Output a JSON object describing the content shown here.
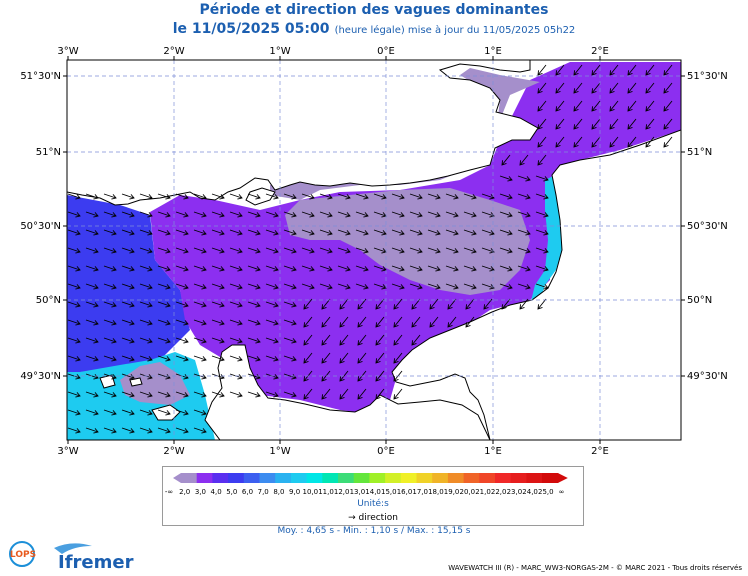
{
  "title": {
    "line1": "Période et direction des vagues dominantes",
    "date": "le 11/05/2025 05:00",
    "note": "(heure légale) mise à jour du 11/05/2025 05h22"
  },
  "axes": {
    "top_ticks": [
      "3°W",
      "2°W",
      "1°W",
      "0°E",
      "1°E",
      "2°E"
    ],
    "bottom_ticks": [
      "3°W",
      "2°W",
      "1°W",
      "0°E",
      "1°E",
      "2°E"
    ],
    "left_ticks": [
      "51°30'N",
      "51°N",
      "50°30'N",
      "50°N",
      "49°30'N"
    ],
    "right_ticks": [
      "51°30'N",
      "51°N",
      "50°30'N",
      "50°N",
      "49°30'N"
    ]
  },
  "legend": {
    "labels": [
      "-∞",
      "2,0",
      "3,0",
      "4,0",
      "5,0",
      "6,0",
      "7,0",
      "8,0",
      "9,0",
      "10,0",
      "11,0",
      "12,0",
      "13,0",
      "14,0",
      "15,0",
      "16,0",
      "17,0",
      "18,0",
      "19,0",
      "20,0",
      "21,0",
      "22,0",
      "23,0",
      "24,0",
      "25,0",
      "∞"
    ],
    "colors": [
      "#a58fcb",
      "#a58fcb",
      "#8c2ff0",
      "#5a2ff0",
      "#3c3cf0",
      "#3c5ff0",
      "#3c8cf0",
      "#2ab2f0",
      "#1ecbf0",
      "#00e6e6",
      "#00e6b4",
      "#3cdc78",
      "#64e63c",
      "#a0f028",
      "#d2f028",
      "#f0f028",
      "#f0d228",
      "#f0b428",
      "#f08c28",
      "#f06428",
      "#f04628",
      "#f02828",
      "#e61e1e",
      "#dc1414",
      "#d20a0a"
    ],
    "unit": "Unité:s",
    "direction_label": "direction"
  },
  "stats": "Moy. : 4,65 s   -   Min. : 1,10 s / Max. : 15,15 s",
  "footer": "WAVEWATCH III (R) - MARC_WW3-NORGAS-2M - © MARC 2021 - Tous droits réservés",
  "logos": {
    "lops": "LOPS",
    "ifremer": "Ifremer"
  },
  "colors": {
    "land": "#ffffff",
    "purple": "#8c2ff0",
    "lavender": "#a58fcb",
    "blue": "#3c3cf0",
    "cyan": "#1ecbf0",
    "title": "#1c5fb0"
  }
}
